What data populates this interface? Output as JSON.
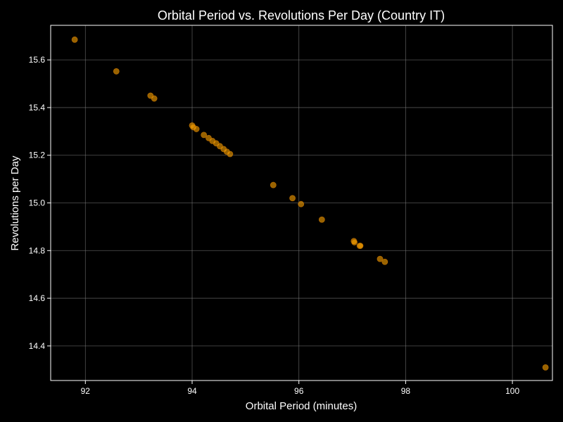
{
  "chart_data": {
    "type": "scatter",
    "title": "Orbital Period vs. Revolutions Per Day (Country IT)",
    "xlabel": "Orbital Period (minutes)",
    "ylabel": "Revolutions per Day",
    "xlim": [
      91.35,
      100.75
    ],
    "ylim": [
      14.255,
      15.745
    ],
    "x_ticks": [
      92,
      94,
      96,
      98,
      100
    ],
    "y_ticks": [
      14.4,
      14.6,
      14.8,
      15.0,
      15.2,
      15.4,
      15.6
    ],
    "x_tick_labels": [
      "92",
      "94",
      "96",
      "98",
      "100"
    ],
    "y_tick_labels": [
      "14.4",
      "14.6",
      "14.8",
      "15.0",
      "15.2",
      "15.4",
      "15.6"
    ],
    "grid": true,
    "colors": {
      "background": "#000000",
      "axes": "#ffffff",
      "grid": "#808080",
      "point_fill": "#ffa500",
      "point_stroke": "#b36b00"
    },
    "points": [
      {
        "x": 91.8,
        "y": 15.685
      },
      {
        "x": 92.58,
        "y": 15.552
      },
      {
        "x": 93.22,
        "y": 15.45
      },
      {
        "x": 93.29,
        "y": 15.438
      },
      {
        "x": 94.0,
        "y": 15.325
      },
      {
        "x": 94.02,
        "y": 15.318
      },
      {
        "x": 94.08,
        "y": 15.31
      },
      {
        "x": 94.22,
        "y": 15.285
      },
      {
        "x": 94.31,
        "y": 15.272
      },
      {
        "x": 94.38,
        "y": 15.26
      },
      {
        "x": 94.45,
        "y": 15.25
      },
      {
        "x": 94.52,
        "y": 15.238
      },
      {
        "x": 94.59,
        "y": 15.226
      },
      {
        "x": 94.65,
        "y": 15.215
      },
      {
        "x": 94.71,
        "y": 15.205
      },
      {
        "x": 95.52,
        "y": 15.075
      },
      {
        "x": 95.88,
        "y": 15.02
      },
      {
        "x": 96.04,
        "y": 14.995
      },
      {
        "x": 96.43,
        "y": 14.93
      },
      {
        "x": 97.03,
        "y": 14.84
      },
      {
        "x": 97.04,
        "y": 14.835
      },
      {
        "x": 97.14,
        "y": 14.82
      },
      {
        "x": 97.15,
        "y": 14.82
      },
      {
        "x": 97.52,
        "y": 14.765
      },
      {
        "x": 97.61,
        "y": 14.753
      },
      {
        "x": 100.62,
        "y": 14.31
      }
    ]
  }
}
